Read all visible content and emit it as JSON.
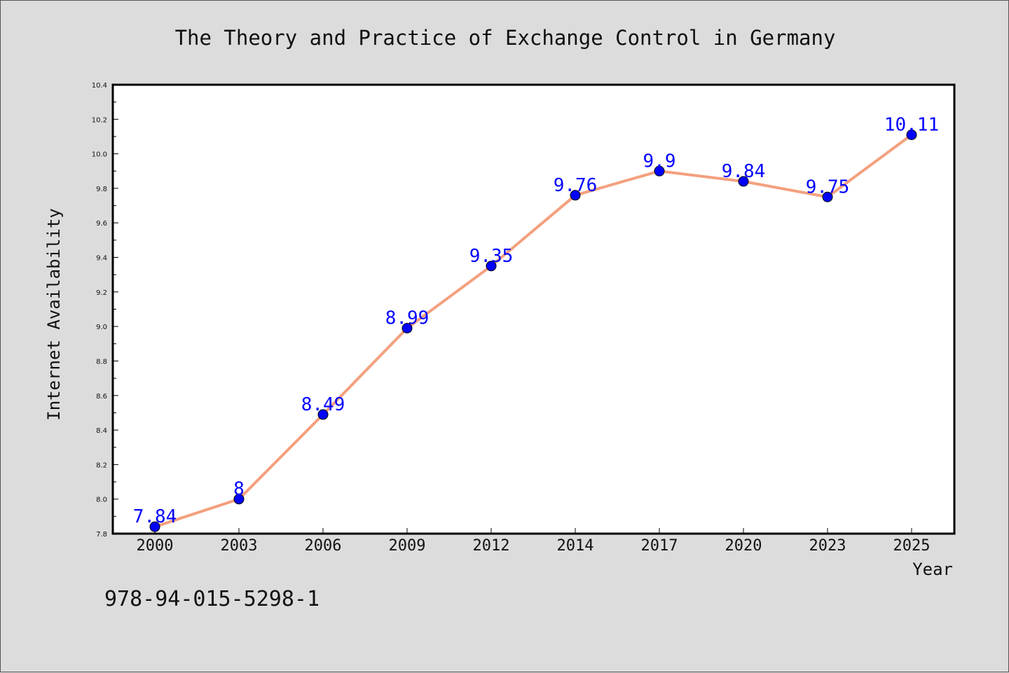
{
  "chart_data": {
    "type": "line",
    "title": "The Theory and Practice of Exchange Control in Germany",
    "xlabel": "Year",
    "ylabel": "Internet Availability",
    "categories": [
      "2000",
      "2003",
      "2006",
      "2009",
      "2012",
      "2014",
      "2017",
      "2020",
      "2023",
      "2025"
    ],
    "series": [
      {
        "values": [
          7.84,
          8.0,
          8.49,
          8.99,
          9.35,
          9.76,
          9.9,
          9.84,
          9.75,
          10.11
        ],
        "data_labels": [
          "7.84",
          "8",
          "8.49",
          "8.99",
          "9.35",
          "9.76",
          "9.9",
          "9.84",
          "9.75",
          "10.11"
        ],
        "line_color": "#f4a07e",
        "marker_color": "#0000ff"
      }
    ],
    "ylim": [
      7.8,
      10.4
    ],
    "yticks": [
      "7.8",
      "8.0",
      "8.2",
      "8.4",
      "8.6",
      "8.8",
      "9.0",
      "9.2",
      "9.4",
      "9.6",
      "9.8",
      "10.0",
      "10.2",
      "10.4"
    ],
    "grid": false,
    "legend": "none"
  },
  "footer": {
    "isbn": "978-94-015-5298-1"
  }
}
